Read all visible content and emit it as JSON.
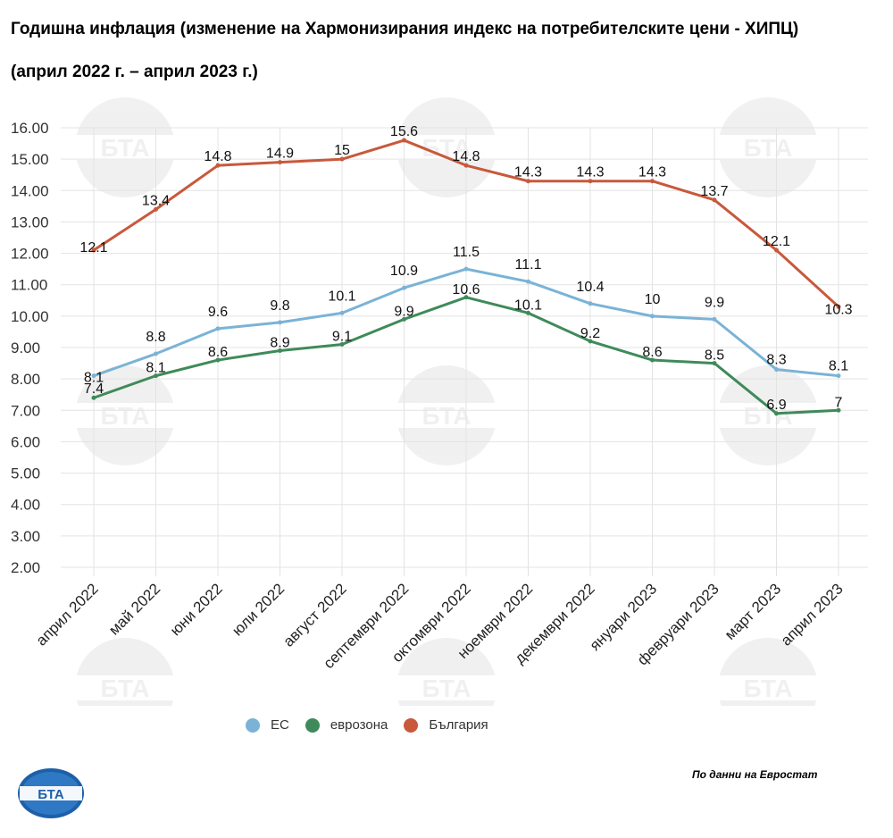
{
  "title_line1": "Годишна инфлация (изменение на Хармонизирания индекс на потребителските цени - ХИПЦ)",
  "title_line2": "(април 2022 г. – април 2023 г.)",
  "source_note": "По данни на Евростат",
  "logo_text": "БТА",
  "chart_data": {
    "type": "line",
    "categories": [
      "април 2022",
      "май 2022",
      "юни 2022",
      "юли 2022",
      "август 2022",
      "септември 2022",
      "октомври 2022",
      "ноември 2022",
      "декември 2022",
      "януари 2023",
      "февруари 2023",
      "март 2023",
      "април 2023"
    ],
    "y_ticks": [
      "16.00",
      "15.00",
      "14.00",
      "13.00",
      "12.00",
      "11.00",
      "10.00",
      "9.00",
      "8.00",
      "7.00",
      "6.00",
      "5.00",
      "4.00",
      "3.00",
      "2.00"
    ],
    "ylim": [
      2,
      16
    ],
    "grid": true,
    "legend_position": "bottom",
    "series": [
      {
        "name": "ЕС",
        "color": "#7ab3d6",
        "values": [
          8.1,
          8.8,
          9.6,
          9.8,
          10.1,
          10.9,
          11.5,
          11.1,
          10.4,
          10,
          9.9,
          8.3,
          8.1
        ],
        "labels": [
          "8.1",
          "8.8",
          "9.6",
          "9.8",
          "10.1",
          "10.9",
          "11.5",
          "11.1",
          "10.4",
          "10",
          "9.9",
          "8.3",
          "8.1"
        ]
      },
      {
        "name": "еврозона",
        "color": "#3f8a5a",
        "values": [
          7.4,
          8.1,
          8.6,
          8.9,
          9.1,
          9.9,
          10.6,
          10.1,
          9.2,
          8.6,
          8.5,
          6.9,
          7
        ],
        "labels": [
          "7.4",
          "8.1",
          "8.6",
          "8.9",
          "9.1",
          "9.9",
          "10.6",
          "10.1",
          "9.2",
          "8.6",
          "8.5",
          "6.9",
          "7"
        ]
      },
      {
        "name": "България",
        "color": "#c8593b",
        "values": [
          12.1,
          13.4,
          14.8,
          14.9,
          15,
          15.6,
          14.8,
          14.3,
          14.3,
          14.3,
          13.7,
          12.1,
          10.3
        ],
        "labels": [
          "12.1",
          "13.4",
          "14.8",
          "14.9",
          "15",
          "15.6",
          "14.8",
          "14.3",
          "14.3",
          "14.3",
          "13.7",
          "12.1",
          "10.3"
        ]
      }
    ]
  }
}
